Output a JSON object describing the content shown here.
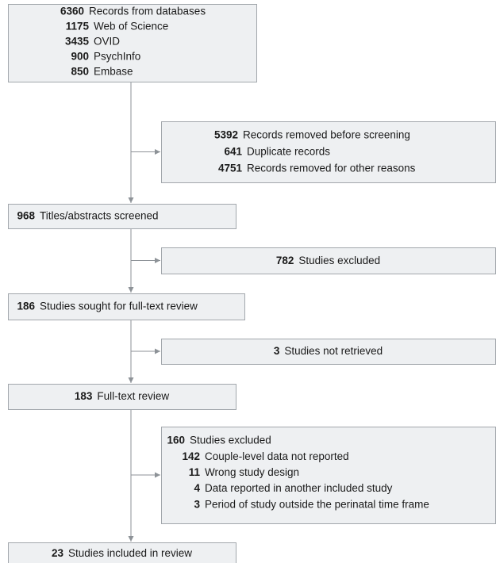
{
  "nodes": [
    {
      "total": {
        "count": 6360,
        "text": "Records from databases"
      },
      "items": [
        {
          "count": 1175,
          "text": "Web of Science"
        },
        {
          "count": 3435,
          "text": "OVID"
        },
        {
          "count": 900,
          "text": "PsychInfo"
        },
        {
          "count": 850,
          "text": "Embase"
        }
      ]
    },
    {
      "total": {
        "count": 5392,
        "text": "Records removed before screening"
      },
      "items": [
        {
          "count": 641,
          "text": "Duplicate records"
        },
        {
          "count": 4751,
          "text": "Records removed for other reasons"
        }
      ]
    },
    {
      "total": {
        "count": 968,
        "text": "Titles/abstracts screened"
      },
      "items": []
    },
    {
      "total": {
        "count": 782,
        "text": "Studies excluded"
      },
      "items": []
    },
    {
      "total": {
        "count": 186,
        "text": "Studies sought for full-text review"
      },
      "items": []
    },
    {
      "total": {
        "count": 3,
        "text": "Studies not retrieved"
      },
      "items": []
    },
    {
      "total": {
        "count": 183,
        "text": "Full-text review"
      },
      "items": []
    },
    {
      "total": {
        "count": 160,
        "text": "Studies excluded"
      },
      "items": [
        {
          "count": 142,
          "text": "Couple-level data not reported"
        },
        {
          "count": 11,
          "text": "Wrong study design"
        },
        {
          "count": 4,
          "text": "Data reported in another included study"
        },
        {
          "count": 3,
          "text": "Period of study outside the perinatal time frame"
        }
      ]
    },
    {
      "total": {
        "count": 23,
        "text": "Studies included in review"
      },
      "items": []
    }
  ]
}
